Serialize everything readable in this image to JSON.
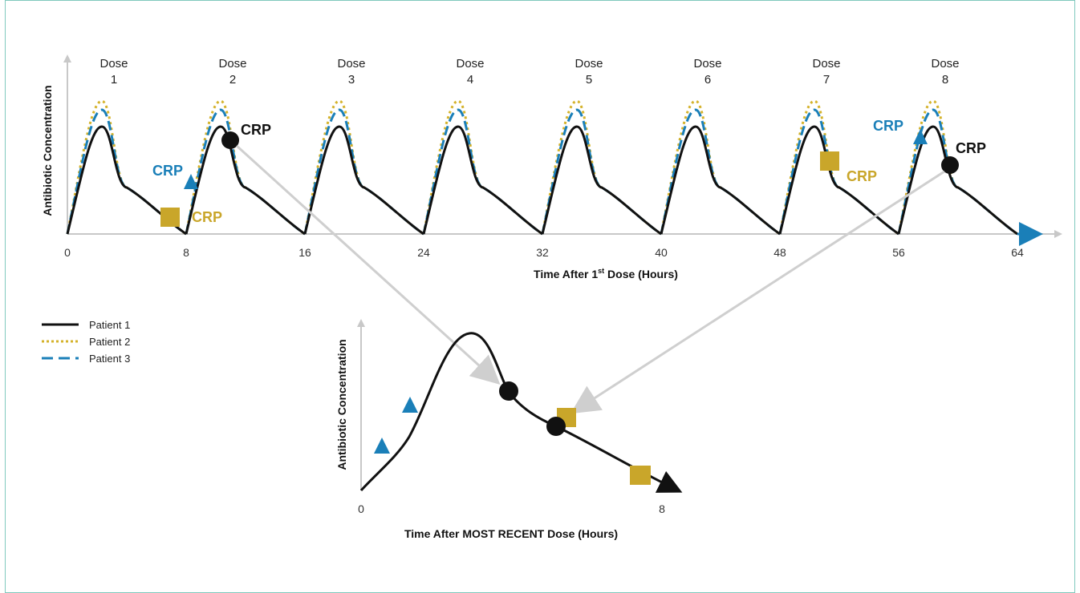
{
  "figure": {
    "top_chart": {
      "y_axis_title": "Antibiotic Concentration",
      "x_axis_title_main": "Time After 1",
      "x_axis_title_sup": "st",
      "x_axis_title_rest": " Dose (Hours)",
      "x_ticks": [
        "0",
        "8",
        "16",
        "24",
        "32",
        "40",
        "48",
        "56",
        "64"
      ],
      "dose_word": "Dose",
      "dose_numbers": [
        "1",
        "2",
        "3",
        "4",
        "5",
        "6",
        "7",
        "8"
      ],
      "dosing_interval_hours": 8
    },
    "bottom_chart": {
      "y_axis_title": "Antibiotic Concentration",
      "x_axis_title": "Time After MOST RECENT Dose (Hours)",
      "x_ticks": [
        "0",
        "8"
      ]
    },
    "crp_label": "CRP",
    "legend": [
      {
        "label": "Patient 1",
        "style": "solid",
        "color": "#111111"
      },
      {
        "label": "Patient 2",
        "style": "dotted",
        "color": "#d4b22a"
      },
      {
        "label": "Patient 3",
        "style": "dashed",
        "color": "#1a7fb8"
      }
    ],
    "colors": {
      "patient1": "#111111",
      "patient2": "#d4b22a",
      "patient3": "#1a7fb8",
      "arrow": "#cccccc",
      "frame": "#7fc9bd",
      "crp_gold": "#c9a62a"
    },
    "markers": [
      {
        "patient": "Patient 1",
        "shape": "circle",
        "dose": "2"
      },
      {
        "patient": "Patient 1",
        "shape": "circle",
        "dose": "8"
      },
      {
        "patient": "Patient 2",
        "shape": "square",
        "dose": "1"
      },
      {
        "patient": "Patient 2",
        "shape": "square",
        "dose": "7"
      },
      {
        "patient": "Patient 3",
        "shape": "triangle",
        "dose": "2"
      },
      {
        "patient": "Patient 3",
        "shape": "triangle",
        "dose": "8"
      }
    ]
  }
}
